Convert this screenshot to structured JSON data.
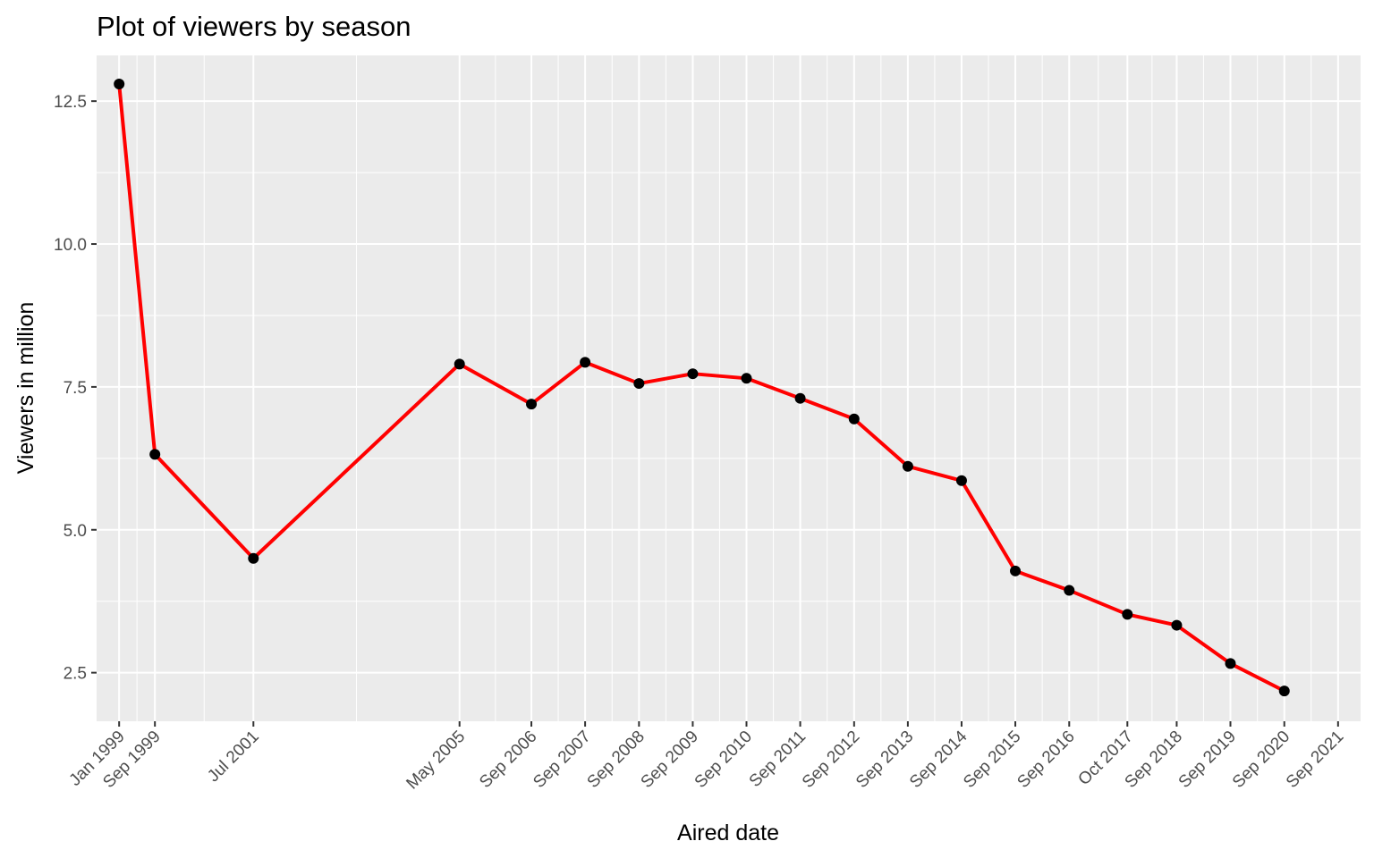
{
  "chart_data": {
    "type": "line",
    "title": "Plot of viewers by season",
    "xlabel": "Aired date",
    "ylabel": "Viewers in million",
    "x_axis_type": "date",
    "xlim": [
      "1998-08-01",
      "2022-02-01"
    ],
    "ylim": [
      1.65,
      13.3
    ],
    "yticks": [
      2.5,
      5.0,
      7.5,
      10.0,
      12.5
    ],
    "ytick_labels": [
      "2.5",
      "5.0",
      "7.5",
      "10.0",
      "12.5"
    ],
    "xticks": [
      {
        "date": "1999-01-01",
        "label": "Jan 1999"
      },
      {
        "date": "1999-09-01",
        "label": "Sep 1999"
      },
      {
        "date": "2001-07-01",
        "label": "Jul 2001"
      },
      {
        "date": "2005-05-01",
        "label": "May 2005"
      },
      {
        "date": "2006-09-01",
        "label": "Sep 2006"
      },
      {
        "date": "2007-09-01",
        "label": "Sep 2007"
      },
      {
        "date": "2008-09-01",
        "label": "Sep 2008"
      },
      {
        "date": "2009-09-01",
        "label": "Sep 2009"
      },
      {
        "date": "2010-09-01",
        "label": "Sep 2010"
      },
      {
        "date": "2011-09-01",
        "label": "Sep 2011"
      },
      {
        "date": "2012-09-01",
        "label": "Sep 2012"
      },
      {
        "date": "2013-09-01",
        "label": "Sep 2013"
      },
      {
        "date": "2014-09-01",
        "label": "Sep 2014"
      },
      {
        "date": "2015-09-01",
        "label": "Sep 2015"
      },
      {
        "date": "2016-09-01",
        "label": "Sep 2016"
      },
      {
        "date": "2017-10-01",
        "label": "Oct 2017"
      },
      {
        "date": "2018-09-01",
        "label": "Sep 2018"
      },
      {
        "date": "2019-09-01",
        "label": "Sep 2019"
      },
      {
        "date": "2020-09-01",
        "label": "Sep 2020"
      },
      {
        "date": "2021-09-01",
        "label": "Sep 2021"
      }
    ],
    "series": [
      {
        "points": [
          {
            "x": "1999-01-01",
            "y": 12.8
          },
          {
            "x": "1999-09-01",
            "y": 6.32
          },
          {
            "x": "2001-07-01",
            "y": 4.5
          },
          {
            "x": "2005-05-01",
            "y": 7.9
          },
          {
            "x": "2006-09-01",
            "y": 7.2
          },
          {
            "x": "2007-09-01",
            "y": 7.93
          },
          {
            "x": "2008-09-01",
            "y": 7.56
          },
          {
            "x": "2009-09-01",
            "y": 7.73
          },
          {
            "x": "2010-09-01",
            "y": 7.65
          },
          {
            "x": "2011-09-01",
            "y": 7.3
          },
          {
            "x": "2012-09-01",
            "y": 6.94
          },
          {
            "x": "2013-09-01",
            "y": 6.11
          },
          {
            "x": "2014-09-01",
            "y": 5.86
          },
          {
            "x": "2015-09-01",
            "y": 4.28
          },
          {
            "x": "2016-09-01",
            "y": 3.94
          },
          {
            "x": "2017-10-01",
            "y": 3.52
          },
          {
            "x": "2018-09-01",
            "y": 3.33
          },
          {
            "x": "2019-09-01",
            "y": 2.66
          },
          {
            "x": "2020-09-01",
            "y": 2.18
          }
        ]
      }
    ],
    "grid": true,
    "colors": {
      "panel_background": "#ebebeb",
      "grid_line": "#ffffff",
      "line": "#ff0000",
      "point": "#000000",
      "tick_label": "#4d4d4d",
      "tick_mark": "#333333"
    }
  }
}
